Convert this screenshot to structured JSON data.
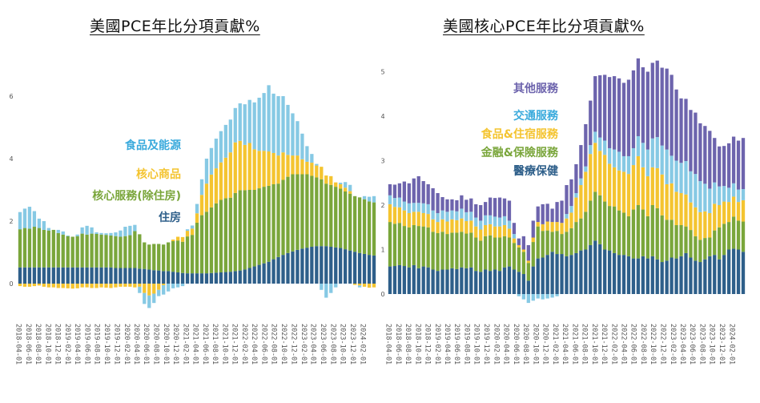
{
  "colors": {
    "housing": "#2e5f8a",
    "core_services_ex_housing": "#7aa63b",
    "core_goods": "#f4c430",
    "food_energy": "#86c9e4",
    "healthcare": "#2e5f8a",
    "finance_insurance": "#7aa63b",
    "food_accommodation": "#f4c430",
    "transportation": "#86c9e4",
    "other_services": "#6d64ad"
  },
  "chart_data": [
    {
      "type": "bar",
      "stacked": true,
      "title": "美國PCE年比分項貢獻%",
      "xlabel": "",
      "ylabel": "",
      "ylim": [
        -0.6,
        7.4
      ],
      "yticks": [
        0,
        2,
        4,
        6
      ],
      "grid": false,
      "date_ticks": [
        "2018-04-01",
        "2018-06-01",
        "2018-08-01",
        "2018-10-01",
        "2018-12-01",
        "2019-02-01",
        "2019-04-01",
        "2019-06-01",
        "2019-08-01",
        "2019-10-01",
        "2019-12-01",
        "2020-02-01",
        "2020-04-01",
        "2020-06-01",
        "2020-08-01",
        "2020-10-01",
        "2020-12-01",
        "2021-02-01",
        "2021-04-01",
        "2021-06-01",
        "2021-08-01",
        "2021-10-01",
        "2021-12-01",
        "2022-02-01",
        "2022-04-01",
        "2022-06-01",
        "2022-08-01",
        "2022-10-01",
        "2022-12-01",
        "2023-02-01",
        "2023-04-01",
        "2023-06-01",
        "2023-08-01",
        "2023-10-01",
        "2023-12-01",
        "2024-02-01"
      ],
      "x_start": "2018-04-01",
      "x_end": "2024-05-01",
      "series": [
        {
          "name": "住房",
          "color_key": "housing",
          "label_color": "#2e5f8a",
          "label_x": 226,
          "label_y": 276,
          "values": [
            0.52,
            0.52,
            0.52,
            0.52,
            0.52,
            0.52,
            0.52,
            0.52,
            0.52,
            0.52,
            0.52,
            0.52,
            0.52,
            0.52,
            0.52,
            0.52,
            0.52,
            0.52,
            0.52,
            0.52,
            0.5,
            0.5,
            0.5,
            0.5,
            0.5,
            0.48,
            0.47,
            0.45,
            0.43,
            0.42,
            0.4,
            0.4,
            0.38,
            0.36,
            0.34,
            0.33,
            0.33,
            0.33,
            0.33,
            0.33,
            0.34,
            0.35,
            0.36,
            0.37,
            0.38,
            0.4,
            0.42,
            0.45,
            0.5,
            0.55,
            0.6,
            0.65,
            0.7,
            0.78,
            0.85,
            0.92,
            0.98,
            1.03,
            1.08,
            1.12,
            1.15,
            1.18,
            1.2,
            1.2,
            1.2,
            1.18,
            1.16,
            1.14,
            1.1,
            1.06,
            1.02,
            0.98,
            0.95,
            0.92,
            0.9
          ]
        },
        {
          "name": "核心服務(除住房)",
          "color_key": "core_services_ex_housing",
          "label_color": "#7aa63b",
          "label_x": 226,
          "label_y": 249,
          "values": [
            1.22,
            1.26,
            1.24,
            1.3,
            1.26,
            1.2,
            1.18,
            1.2,
            1.1,
            1.05,
            1.0,
            0.98,
            1.0,
            1.08,
            1.05,
            1.08,
            1.07,
            1.05,
            1.04,
            1.02,
            1.02,
            1.0,
            1.02,
            1.05,
            1.18,
            1.1,
            0.85,
            0.8,
            0.84,
            0.85,
            0.85,
            0.92,
            0.98,
            1.02,
            1.0,
            1.18,
            1.23,
            1.62,
            1.86,
            1.97,
            2.1,
            2.22,
            2.32,
            2.36,
            2.37,
            2.5,
            2.57,
            2.54,
            2.5,
            2.45,
            2.45,
            2.45,
            2.43,
            2.4,
            2.35,
            2.4,
            2.44,
            2.47,
            2.42,
            2.38,
            2.35,
            2.27,
            2.2,
            2.14,
            2.0,
            1.98,
            1.94,
            1.9,
            1.85,
            1.82,
            1.78,
            1.78,
            1.75,
            1.71,
            1.7
          ]
        },
        {
          "name": "核心商品",
          "color_key": "core_goods",
          "label_color": "#f4c430",
          "label_x": 226,
          "label_y": 222,
          "values": [
            -0.08,
            -0.1,
            -0.1,
            -0.08,
            -0.06,
            -0.1,
            -0.12,
            -0.12,
            -0.14,
            -0.14,
            -0.15,
            -0.16,
            -0.15,
            -0.12,
            -0.12,
            -0.14,
            -0.14,
            -0.12,
            -0.13,
            -0.14,
            -0.12,
            -0.1,
            -0.1,
            -0.1,
            -0.12,
            -0.1,
            -0.3,
            -0.38,
            -0.32,
            -0.2,
            -0.05,
            0.0,
            0.05,
            0.12,
            0.15,
            0.18,
            0.2,
            0.3,
            0.65,
            0.9,
            1.05,
            1.12,
            1.2,
            1.3,
            1.45,
            1.62,
            1.58,
            1.45,
            1.5,
            1.3,
            1.2,
            1.15,
            1.1,
            1.0,
            0.9,
            0.88,
            0.7,
            0.6,
            0.6,
            0.48,
            0.4,
            0.42,
            0.38,
            0.4,
            0.26,
            0.28,
            0.14,
            0.14,
            0.12,
            0.08,
            -0.04,
            -0.06,
            -0.1,
            -0.13,
            -0.12
          ]
        },
        {
          "name": "食品及能源",
          "color_key": "food_energy",
          "label_color": "#3aaadc",
          "label_x": 226,
          "label_y": 186,
          "values": [
            0.55,
            0.62,
            0.7,
            0.5,
            0.3,
            0.28,
            0.08,
            0.0,
            0.1,
            0.1,
            0.02,
            0.0,
            0.05,
            0.2,
            0.28,
            0.2,
            0.05,
            0.05,
            0.05,
            0.08,
            0.12,
            0.2,
            0.3,
            0.3,
            0.2,
            -0.2,
            -0.35,
            -0.4,
            -0.3,
            -0.2,
            -0.3,
            -0.25,
            -0.15,
            -0.12,
            -0.08,
            0.05,
            0.1,
            0.3,
            0.5,
            0.8,
            0.85,
            0.95,
            1.0,
            1.05,
            1.05,
            1.1,
            1.2,
            1.3,
            1.38,
            1.5,
            1.7,
            1.85,
            2.12,
            1.9,
            1.9,
            1.8,
            1.6,
            1.35,
            1.1,
            0.82,
            0.5,
            0.28,
            0.05,
            -0.2,
            -0.45,
            -0.3,
            -0.12,
            0.05,
            0.18,
            0.2,
            0.0,
            -0.06,
            0.1,
            0.15,
            0.2
          ]
        }
      ]
    },
    {
      "type": "bar",
      "stacked": true,
      "title": "美國核心PCE年比分項貢獻%",
      "xlabel": "",
      "ylabel": "",
      "ylim": [
        -0.4,
        5.6
      ],
      "yticks": [
        0,
        1,
        2,
        3,
        4,
        5
      ],
      "grid": false,
      "date_ticks": [
        "2018-04-01",
        "2018-06-01",
        "2018-08-01",
        "2018-10-01",
        "2018-12-01",
        "2019-02-01",
        "2019-04-01",
        "2019-06-01",
        "2019-08-01",
        "2019-10-01",
        "2019-12-01",
        "2020-02-01",
        "2020-04-01",
        "2020-06-01",
        "2020-08-01",
        "2020-10-01",
        "2020-12-01",
        "2021-02-01",
        "2021-04-01",
        "2021-06-01",
        "2021-08-01",
        "2021-10-01",
        "2021-12-01",
        "2022-02-01",
        "2022-04-01",
        "2022-06-01",
        "2022-08-01",
        "2022-10-01",
        "2022-12-01",
        "2023-02-01",
        "2023-04-01",
        "2023-06-01",
        "2023-08-01",
        "2023-10-01",
        "2023-12-01",
        "2024-02-01"
      ],
      "x_start": "2018-04-01",
      "x_end": "2024-05-01",
      "series": [
        {
          "name": "醫療保健",
          "color_key": "healthcare",
          "label_color": "#2e5f8a",
          "label_x": 697,
          "label_y": 218,
          "values": [
            0.62,
            0.63,
            0.65,
            0.63,
            0.6,
            0.65,
            0.58,
            0.62,
            0.6,
            0.55,
            0.52,
            0.55,
            0.55,
            0.58,
            0.56,
            0.6,
            0.58,
            0.6,
            0.52,
            0.5,
            0.55,
            0.52,
            0.55,
            0.52,
            0.6,
            0.62,
            0.55,
            0.5,
            0.45,
            0.3,
            0.62,
            0.8,
            0.82,
            0.88,
            0.95,
            0.9,
            0.9,
            0.85,
            0.88,
            0.92,
            0.98,
            1.0,
            1.1,
            1.2,
            1.12,
            1.0,
            0.98,
            0.92,
            0.88,
            0.88,
            0.85,
            0.8,
            0.8,
            0.85,
            0.8,
            0.85,
            0.78,
            0.72,
            0.75,
            0.82,
            0.8,
            0.85,
            0.92,
            0.82,
            0.75,
            0.72,
            0.78,
            0.85,
            0.88,
            0.78,
            0.88,
            1.0,
            1.02,
            1.0,
            0.95
          ]
        },
        {
          "name": "金融&保險服務",
          "color_key": "finance_insurance",
          "label_color": "#7aa63b",
          "label_x": 697,
          "label_y": 195,
          "values": [
            1.0,
            0.95,
            0.95,
            0.9,
            0.9,
            0.9,
            0.95,
            0.9,
            0.9,
            0.85,
            0.85,
            0.85,
            0.8,
            0.8,
            0.82,
            0.8,
            0.78,
            0.78,
            0.75,
            0.7,
            0.75,
            0.8,
            0.72,
            0.75,
            0.7,
            0.65,
            0.6,
            0.55,
            0.5,
            0.4,
            0.55,
            0.72,
            0.6,
            0.55,
            0.45,
            0.52,
            0.45,
            0.55,
            0.6,
            0.7,
            0.72,
            0.85,
            1.0,
            1.1,
            1.1,
            1.08,
            1.0,
            1.05,
            1.0,
            0.95,
            0.9,
            1.1,
            1.2,
            1.05,
            0.95,
            1.15,
            1.15,
            1.05,
            0.92,
            0.85,
            0.75,
            0.7,
            0.6,
            0.62,
            0.55,
            0.5,
            0.48,
            0.42,
            0.55,
            0.72,
            0.7,
            0.62,
            0.72,
            0.65,
            0.68
          ]
        },
        {
          "name": "食品&住宿服務",
          "color_key": "food_accommodation",
          "label_color": "#f4c430",
          "label_x": 697,
          "label_y": 172,
          "values": [
            0.4,
            0.38,
            0.35,
            0.35,
            0.32,
            0.3,
            0.32,
            0.3,
            0.3,
            0.28,
            0.25,
            0.28,
            0.28,
            0.3,
            0.28,
            0.3,
            0.28,
            0.27,
            0.25,
            0.25,
            0.25,
            0.25,
            0.25,
            0.25,
            0.25,
            0.2,
            0.1,
            0.05,
            0.05,
            0.05,
            0.1,
            0.1,
            0.15,
            0.2,
            0.22,
            0.2,
            0.25,
            0.3,
            0.35,
            0.55,
            0.75,
            0.9,
            1.05,
            1.1,
            1.0,
            1.05,
            0.95,
            0.88,
            0.9,
            0.92,
            0.95,
            1.0,
            1.1,
            0.95,
            0.9,
            0.85,
            0.9,
            0.92,
            0.8,
            0.82,
            0.75,
            0.72,
            0.72,
            0.62,
            0.65,
            0.62,
            0.6,
            0.55,
            0.6,
            0.5,
            0.5,
            0.45,
            0.45,
            0.42,
            0.48
          ]
        },
        {
          "name": "交通服務",
          "color_key": "transportation",
          "label_color": "#3aaadc",
          "label_x": 697,
          "label_y": 149,
          "values": [
            0.2,
            0.2,
            0.22,
            0.2,
            0.22,
            0.2,
            0.2,
            0.22,
            0.22,
            0.2,
            0.2,
            0.2,
            0.22,
            0.2,
            0.2,
            0.22,
            0.2,
            0.2,
            0.2,
            0.2,
            0.22,
            0.2,
            0.22,
            0.2,
            0.2,
            0.18,
            0.1,
            -0.05,
            -0.12,
            -0.2,
            -0.15,
            -0.1,
            -0.12,
            -0.1,
            -0.08,
            -0.05,
            0.0,
            0.1,
            0.15,
            0.1,
            0.15,
            0.12,
            0.2,
            0.25,
            0.3,
            0.32,
            0.35,
            0.4,
            0.42,
            0.35,
            0.4,
            0.38,
            0.45,
            0.55,
            0.6,
            0.65,
            0.7,
            0.65,
            0.78,
            0.62,
            0.7,
            0.68,
            0.75,
            0.7,
            0.75,
            0.7,
            0.62,
            0.55,
            0.48,
            0.42,
            0.35,
            0.32,
            0.3,
            0.28,
            0.25
          ]
        },
        {
          "name": "其他服務",
          "color_key": "other_services",
          "label_color": "#6d64ad",
          "label_x": 697,
          "label_y": 115,
          "values": [
            0.25,
            0.3,
            0.32,
            0.45,
            0.45,
            0.55,
            0.6,
            0.5,
            0.45,
            0.5,
            0.45,
            0.3,
            0.28,
            0.25,
            0.25,
            0.3,
            0.28,
            0.3,
            0.3,
            0.35,
            0.3,
            0.4,
            0.42,
            0.45,
            0.4,
            0.45,
            0.25,
            0.15,
            0.3,
            0.35,
            0.38,
            0.35,
            0.45,
            0.4,
            0.3,
            0.45,
            0.5,
            0.65,
            0.6,
            0.65,
            0.75,
            0.95,
            1.0,
            1.25,
            1.4,
            1.48,
            1.6,
            1.65,
            1.65,
            1.65,
            1.72,
            1.75,
            1.75,
            1.7,
            1.75,
            1.7,
            1.72,
            1.75,
            1.82,
            1.82,
            1.6,
            1.45,
            1.4,
            1.38,
            1.38,
            1.3,
            1.3,
            1.3,
            1.0,
            0.9,
            0.9,
            1.0,
            1.05,
            1.1,
            1.15
          ]
        }
      ]
    }
  ]
}
